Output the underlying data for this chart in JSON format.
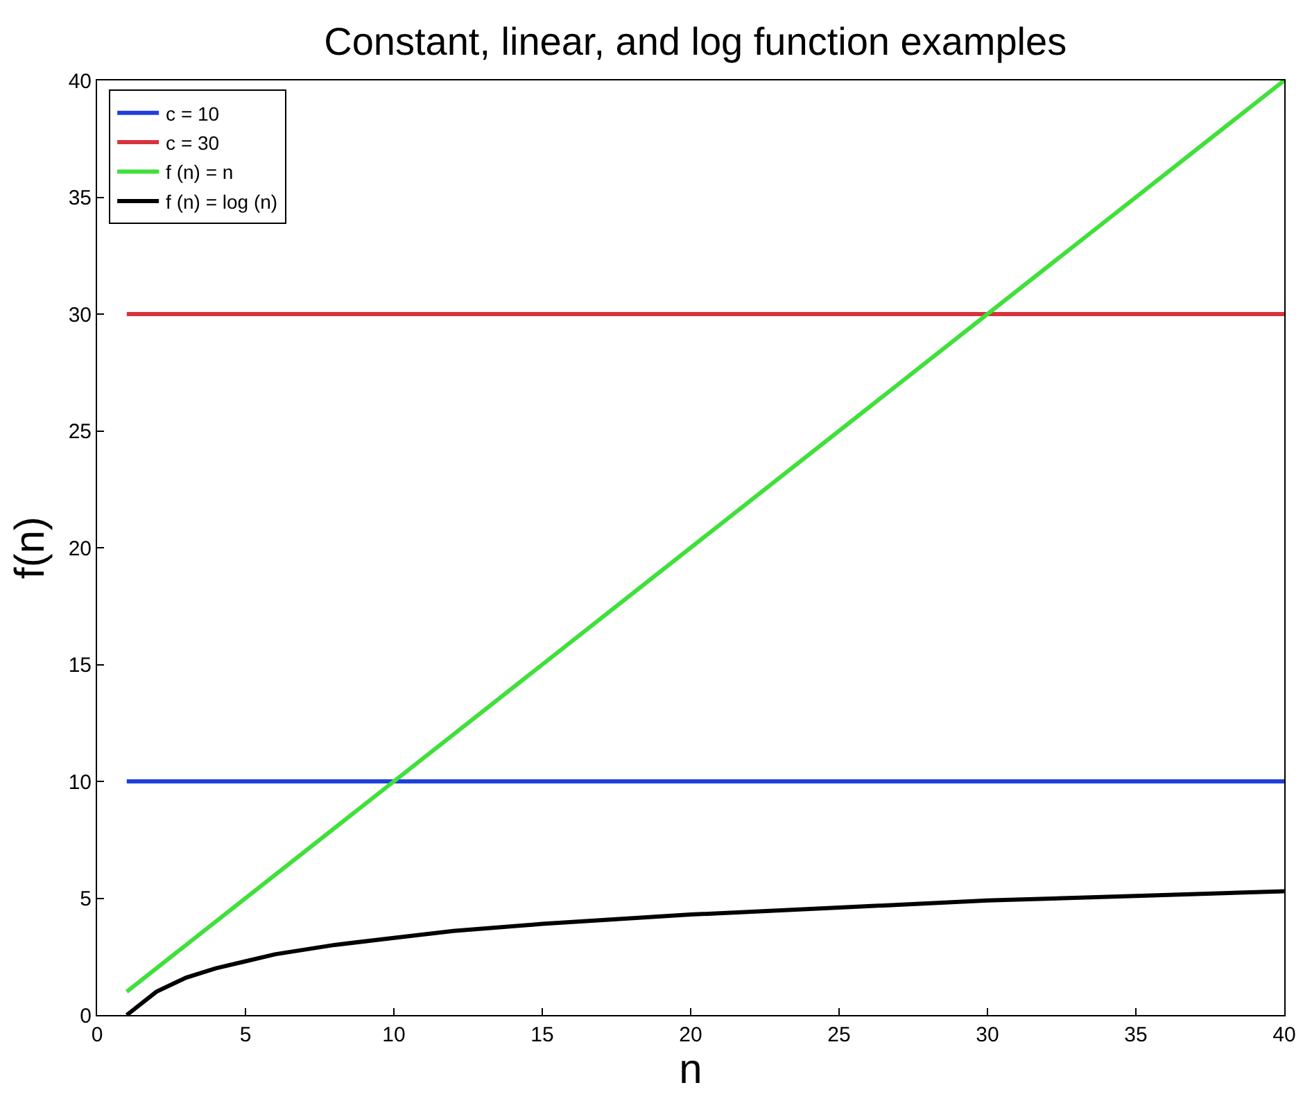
{
  "chart_data": {
    "type": "line",
    "title": "Constant, linear, and log function examples",
    "xlabel": "n",
    "ylabel": "f(n)",
    "xlim": [
      0,
      40
    ],
    "ylim": [
      0,
      40
    ],
    "xticks": [
      0,
      5,
      10,
      15,
      20,
      25,
      30,
      35,
      40
    ],
    "yticks": [
      0,
      5,
      10,
      15,
      20,
      25,
      30,
      35,
      40
    ],
    "legend": "top left",
    "marker": "none",
    "line_style": "solid",
    "series": [
      {
        "name": "c = 10",
        "color": "#1f3fdc",
        "x": [
          1,
          40
        ],
        "values": [
          10,
          10
        ]
      },
      {
        "name": "c = 30",
        "color": "#d8323c",
        "x": [
          1,
          40
        ],
        "values": [
          30,
          30
        ]
      },
      {
        "name": "f (n) = n",
        "color": "#3fe03a",
        "x": [
          1,
          40
        ],
        "values": [
          1,
          40
        ]
      },
      {
        "name": "f (n) = log (n)",
        "color": "#000000",
        "x": [
          1,
          2,
          3,
          4,
          5,
          6,
          8,
          10,
          12,
          15,
          20,
          25,
          30,
          35,
          40
        ],
        "values": [
          0,
          1,
          1.6,
          2,
          2.3,
          2.6,
          3,
          3.3,
          3.6,
          3.9,
          4.3,
          4.6,
          4.9,
          5.1,
          5.3
        ]
      }
    ]
  }
}
